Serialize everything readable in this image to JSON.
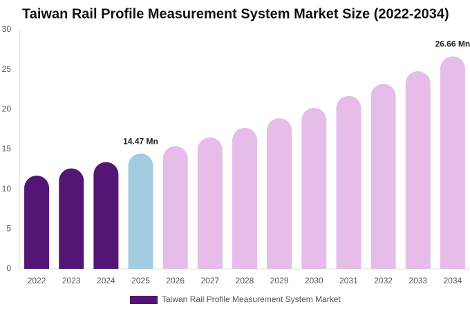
{
  "chart_data": {
    "type": "bar",
    "title": "Taiwan Rail Profile Measurement System Market Size (2022-2034)",
    "categories": [
      "2022",
      "2023",
      "2024",
      "2025",
      "2026",
      "2027",
      "2028",
      "2029",
      "2030",
      "2031",
      "2032",
      "2033",
      "2034"
    ],
    "series": [
      {
        "name": "Taiwan Rail Profile Measurement System Market",
        "color": "#541675",
        "colors": [
          "#541675",
          "#541675",
          "#541675",
          "#a3cbdf",
          "#e6bde9",
          "#e6bde9",
          "#e6bde9",
          "#e6bde9",
          "#e6bde9",
          "#e6bde9",
          "#e6bde9",
          "#e6bde9",
          "#e6bde9"
        ],
        "values": [
          11.7,
          12.6,
          13.4,
          14.47,
          15.4,
          16.5,
          17.7,
          18.9,
          20.2,
          21.7,
          23.2,
          24.8,
          26.66
        ],
        "value_labels": [
          null,
          null,
          null,
          "14.47 Mn",
          null,
          null,
          null,
          null,
          null,
          null,
          null,
          null,
          "26.66 Mn"
        ]
      }
    ],
    "ylim": [
      0,
      30
    ],
    "yticks": [
      0,
      5,
      10,
      15,
      20,
      25,
      30
    ],
    "grid": false
  }
}
